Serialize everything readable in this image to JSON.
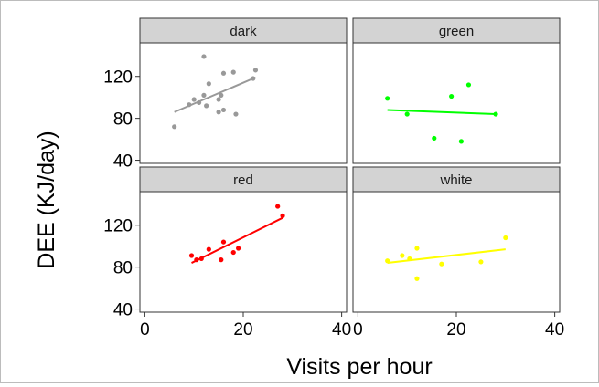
{
  "chart_data": {
    "type": "scatter",
    "xlabel": "Visits per hour",
    "ylabel": "DEE (KJ/day)",
    "xlim": [
      -1,
      41
    ],
    "ylim": [
      37,
      152
    ],
    "x_ticks": [
      0,
      20,
      40
    ],
    "y_ticks": [
      40,
      80,
      120
    ],
    "grid": false,
    "panels": [
      {
        "label": "dark",
        "color": "#999999",
        "points": [
          {
            "x": 6,
            "y": 72
          },
          {
            "x": 9,
            "y": 93
          },
          {
            "x": 10,
            "y": 98
          },
          {
            "x": 11,
            "y": 95
          },
          {
            "x": 12,
            "y": 139
          },
          {
            "x": 12,
            "y": 102
          },
          {
            "x": 12.5,
            "y": 92
          },
          {
            "x": 13,
            "y": 113
          },
          {
            "x": 15,
            "y": 98
          },
          {
            "x": 15,
            "y": 86
          },
          {
            "x": 15.5,
            "y": 102
          },
          {
            "x": 16,
            "y": 123
          },
          {
            "x": 16,
            "y": 88
          },
          {
            "x": 18,
            "y": 124
          },
          {
            "x": 18.5,
            "y": 84
          },
          {
            "x": 22,
            "y": 118
          },
          {
            "x": 22.5,
            "y": 126
          }
        ],
        "fit": [
          {
            "x": 6,
            "y": 86
          },
          {
            "x": 22.5,
            "y": 119
          }
        ]
      },
      {
        "label": "green",
        "color": "#00ff00",
        "points": [
          {
            "x": 6,
            "y": 99
          },
          {
            "x": 10,
            "y": 84
          },
          {
            "x": 15.5,
            "y": 61
          },
          {
            "x": 19,
            "y": 101
          },
          {
            "x": 21,
            "y": 58
          },
          {
            "x": 22.5,
            "y": 112
          },
          {
            "x": 28,
            "y": 84
          }
        ],
        "fit": [
          {
            "x": 6,
            "y": 88
          },
          {
            "x": 28,
            "y": 84
          }
        ]
      },
      {
        "label": "red",
        "color": "#ff0000",
        "points": [
          {
            "x": 9.5,
            "y": 91
          },
          {
            "x": 10.5,
            "y": 87
          },
          {
            "x": 11.5,
            "y": 88
          },
          {
            "x": 13,
            "y": 97
          },
          {
            "x": 15.5,
            "y": 87
          },
          {
            "x": 16,
            "y": 104
          },
          {
            "x": 18,
            "y": 94
          },
          {
            "x": 19,
            "y": 98
          },
          {
            "x": 27,
            "y": 138
          },
          {
            "x": 28,
            "y": 129
          }
        ],
        "fit": [
          {
            "x": 9.5,
            "y": 84
          },
          {
            "x": 28,
            "y": 127
          }
        ]
      },
      {
        "label": "white",
        "color": "#ffff00",
        "points": [
          {
            "x": 6,
            "y": 86
          },
          {
            "x": 9,
            "y": 91
          },
          {
            "x": 10.5,
            "y": 88
          },
          {
            "x": 12,
            "y": 98
          },
          {
            "x": 12,
            "y": 69
          },
          {
            "x": 17,
            "y": 83
          },
          {
            "x": 25,
            "y": 85
          },
          {
            "x": 30,
            "y": 108
          }
        ],
        "fit": [
          {
            "x": 6,
            "y": 84
          },
          {
            "x": 30,
            "y": 97
          }
        ]
      }
    ]
  }
}
